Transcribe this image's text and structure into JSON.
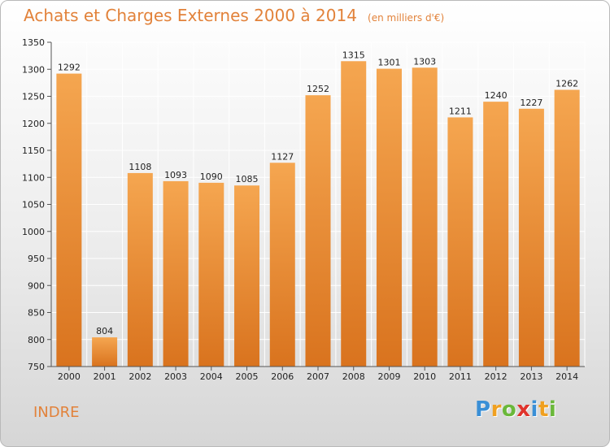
{
  "title": "Achats et Charges Externes 2000 à 2014",
  "subtitle": "(en milliers d'€)",
  "region": "INDRE",
  "logo": {
    "text": "Proxiti",
    "letters": [
      {
        "char": "P",
        "color": "#3a8fd6"
      },
      {
        "char": "r",
        "color": "#f0a020"
      },
      {
        "char": "o",
        "color": "#6ab83a"
      },
      {
        "char": "x",
        "color": "#e0332c"
      },
      {
        "char": "i",
        "color": "#3a8fd6"
      },
      {
        "char": "t",
        "color": "#f0a020"
      },
      {
        "char": "i",
        "color": "#6ab83a"
      }
    ]
  },
  "colors": {
    "bar_top": "#f5a650",
    "bar_bottom": "#d9731e",
    "accent": "#e2823a",
    "grid": "#ffffff"
  },
  "chart_data": {
    "type": "bar",
    "title": "Achats et Charges Externes 2000 à 2014",
    "subtitle": "(en milliers d'€)",
    "categories": [
      "2000",
      "2001",
      "2002",
      "2003",
      "2004",
      "2005",
      "2006",
      "2007",
      "2008",
      "2009",
      "2010",
      "2011",
      "2012",
      "2013",
      "2014"
    ],
    "values": [
      1292,
      804,
      1108,
      1093,
      1090,
      1085,
      1127,
      1252,
      1315,
      1301,
      1303,
      1211,
      1240,
      1227,
      1262
    ],
    "ylim": [
      750,
      1350
    ],
    "yticks": [
      750,
      800,
      850,
      900,
      950,
      1000,
      1050,
      1100,
      1150,
      1200,
      1250,
      1300,
      1350
    ],
    "grid": true,
    "data_labels": true
  }
}
